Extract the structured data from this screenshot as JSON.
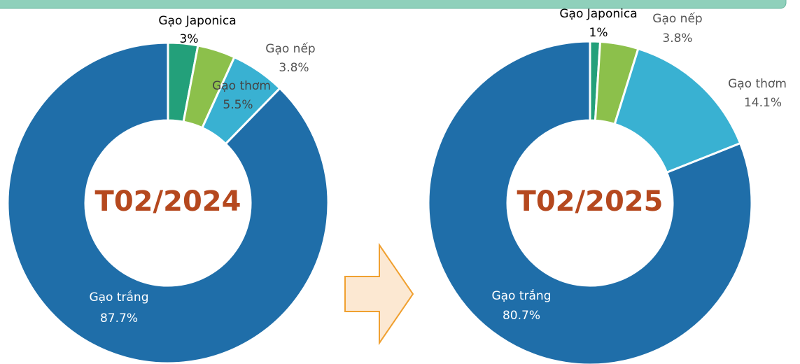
{
  "chart_data": [
    {
      "type": "pie",
      "title": "T02/2024",
      "categories": [
        "Gạo Japonica",
        "Gạo nếp",
        "Gạo thơm",
        "Gạo trắng"
      ],
      "values": [
        3,
        3.8,
        5.5,
        87.7
      ],
      "value_labels": [
        "3%",
        "3.8%",
        "5.5%",
        "87.7%"
      ],
      "colors": [
        "#23a07a",
        "#8cc04b",
        "#39b1d2",
        "#1f6ea9"
      ]
    },
    {
      "type": "pie",
      "title": "T02/2025",
      "categories": [
        "Gạo Japonica",
        "Gạo nếp",
        "Gạo thơm",
        "Gạo trắng"
      ],
      "values": [
        1,
        3.8,
        14.1,
        80.7
      ],
      "value_labels": [
        "1%",
        "3.8%",
        "14.1%",
        "80.7%"
      ],
      "colors": [
        "#23a07a",
        "#8cc04b",
        "#39b1d2",
        "#1f6ea9"
      ]
    }
  ]
}
